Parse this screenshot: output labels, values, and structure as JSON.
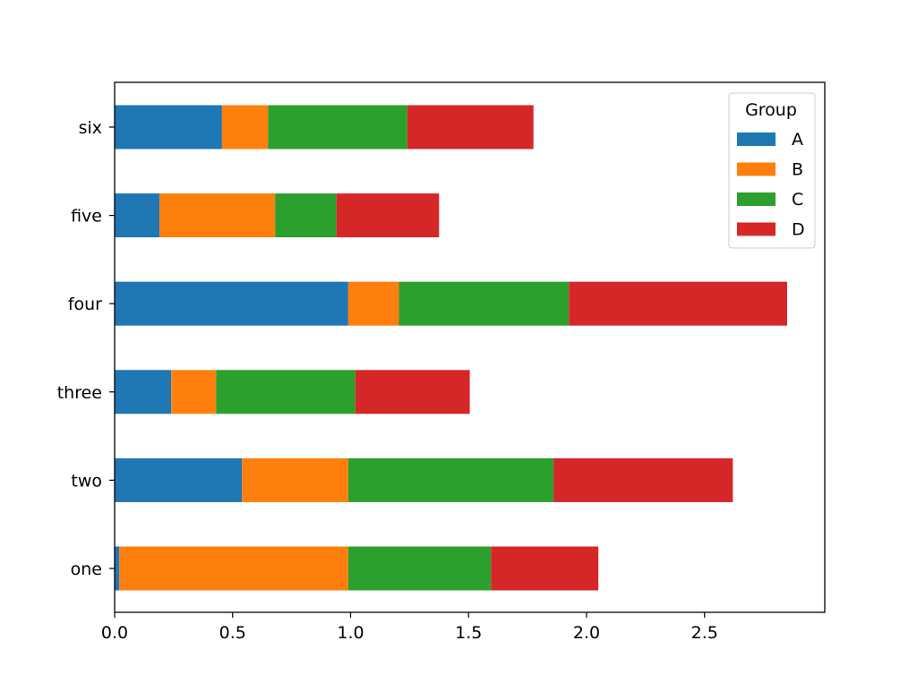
{
  "chart_data": {
    "type": "bar",
    "orientation": "horizontal",
    "stacked": true,
    "categories": [
      "one",
      "two",
      "three",
      "four",
      "five",
      "six"
    ],
    "series": [
      {
        "name": "A",
        "color": "#1f77b4",
        "values": [
          0.02,
          0.54,
          0.24,
          0.99,
          0.19,
          0.455
        ]
      },
      {
        "name": "B",
        "color": "#ff7f0e",
        "values": [
          0.97,
          0.45,
          0.19,
          0.215,
          0.49,
          0.195
        ]
      },
      {
        "name": "C",
        "color": "#2ca02c",
        "values": [
          0.605,
          0.87,
          0.59,
          0.72,
          0.26,
          0.59
        ]
      },
      {
        "name": "D",
        "color": "#d62728",
        "values": [
          0.455,
          0.76,
          0.485,
          0.925,
          0.435,
          0.535
        ]
      }
    ],
    "xlim": [
      0,
      3.0
    ],
    "xticks": [
      "0.0",
      "0.5",
      "1.0",
      "1.5",
      "2.0",
      "2.5"
    ],
    "legend": {
      "title": "Group",
      "position": "top-right"
    },
    "grid": false
  }
}
